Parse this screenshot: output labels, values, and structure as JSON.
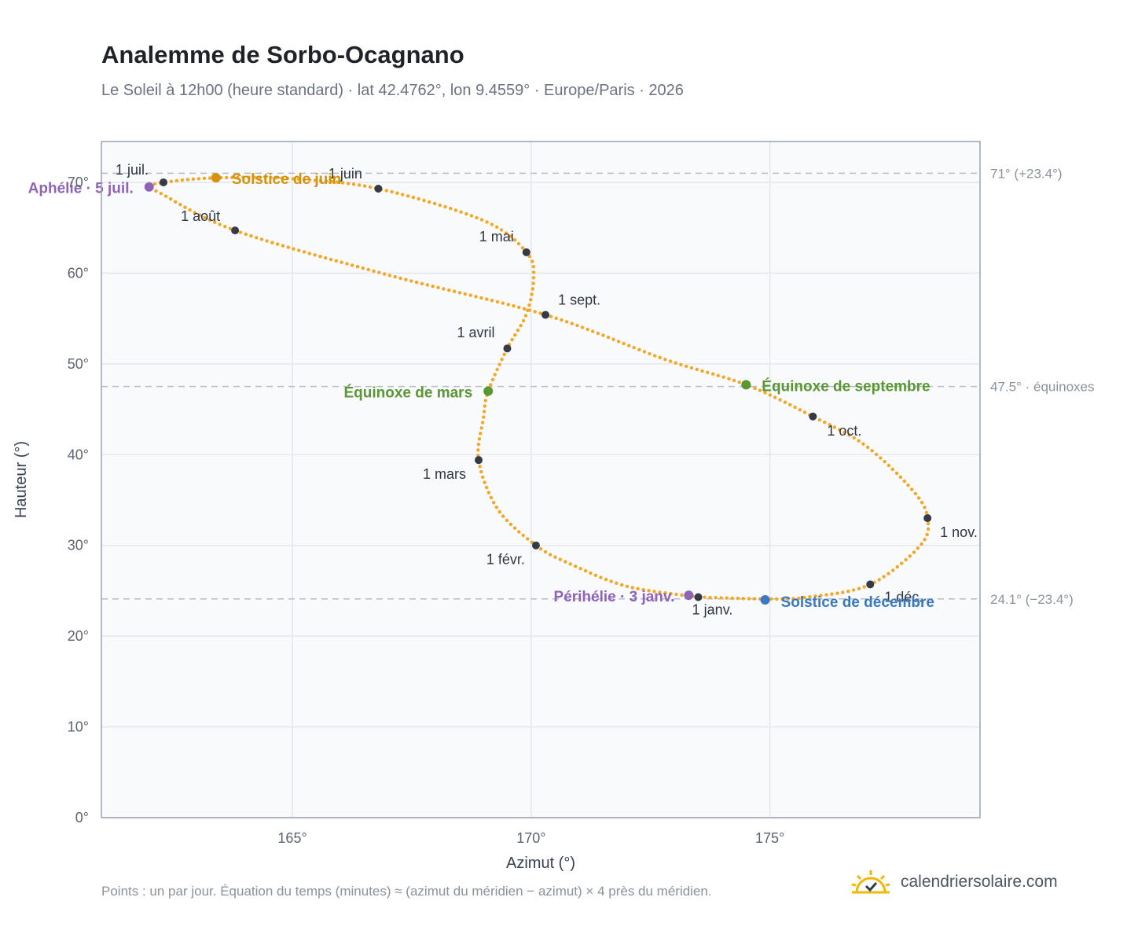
{
  "header": {
    "title": "Analemme de Sorbo-Ocagnano",
    "subtitle": "Le Soleil à 12h00 (heure standard) · lat 42.4762°, lon 9.4559° · Europe/Paris · 2026"
  },
  "footer": {
    "note": "Points : un par jour. Équation du temps (minutes) ≈ (azimut du méridien − azimut) × 4 près du méridien.",
    "brand": "calendriersolaire.com"
  },
  "colors": {
    "path": "#f5a623",
    "marker": "#343a46",
    "solstice_june": "#d4920e",
    "solstice_december": "#3a78c2",
    "equinox": "#5a9632",
    "apsis": "#8e63b8",
    "grid": "#e3e8ee",
    "plot_bg": "#f8fafc",
    "ref_line": "#b6bdc6"
  },
  "chart_data": {
    "type": "scatter",
    "xlabel": "Azimut (°)",
    "ylabel": "Hauteur (°)",
    "xlim": [
      161,
      179.4
    ],
    "ylim": [
      0,
      74.5
    ],
    "x_ticks": [
      165,
      170,
      175
    ],
    "x_tick_labels": [
      "165°",
      "170°",
      "175°"
    ],
    "y_ticks": [
      0,
      10,
      20,
      30,
      40,
      50,
      60,
      70
    ],
    "y_tick_labels": [
      "0°",
      "10°",
      "20°",
      "30°",
      "40°",
      "50°",
      "60°",
      "70°"
    ],
    "grid": true,
    "series": [
      {
        "points_per_day": true,
        "points": [
          {
            "x": 173.5,
            "y": 24.3
          },
          {
            "x": 172.0,
            "y": 25.5
          },
          {
            "x": 170.8,
            "y": 28.0
          },
          {
            "x": 170.1,
            "y": 30.0
          },
          {
            "x": 169.3,
            "y": 34.0
          },
          {
            "x": 168.9,
            "y": 39.4
          },
          {
            "x": 169.0,
            "y": 44.0
          },
          {
            "x": 169.1,
            "y": 47.0
          },
          {
            "x": 169.5,
            "y": 51.7
          },
          {
            "x": 169.9,
            "y": 55.5
          },
          {
            "x": 170.05,
            "y": 59.5
          },
          {
            "x": 169.9,
            "y": 62.3
          },
          {
            "x": 169.0,
            "y": 65.8
          },
          {
            "x": 166.8,
            "y": 69.3
          },
          {
            "x": 165.0,
            "y": 70.4
          },
          {
            "x": 163.4,
            "y": 70.5
          },
          {
            "x": 162.3,
            "y": 70.0
          },
          {
            "x": 162.0,
            "y": 69.5
          },
          {
            "x": 162.2,
            "y": 68.9
          },
          {
            "x": 163.8,
            "y": 64.7
          },
          {
            "x": 167.0,
            "y": 59.8
          },
          {
            "x": 170.3,
            "y": 55.4
          },
          {
            "x": 172.8,
            "y": 50.5
          },
          {
            "x": 174.5,
            "y": 47.7
          },
          {
            "x": 175.9,
            "y": 44.2
          },
          {
            "x": 177.0,
            "y": 41.0
          },
          {
            "x": 178.0,
            "y": 36.0
          },
          {
            "x": 178.3,
            "y": 33.0
          },
          {
            "x": 178.15,
            "y": 30.0
          },
          {
            "x": 177.1,
            "y": 25.7
          },
          {
            "x": 175.8,
            "y": 24.3
          },
          {
            "x": 174.9,
            "y": 24.1
          },
          {
            "x": 173.5,
            "y": 24.3
          }
        ]
      }
    ],
    "month_markers": [
      {
        "label": "1 janv.",
        "x": 173.5,
        "y": 24.3
      },
      {
        "label": "1 févr.",
        "x": 170.1,
        "y": 30.0
      },
      {
        "label": "1 mars",
        "x": 168.9,
        "y": 39.4
      },
      {
        "label": "1 avril",
        "x": 169.5,
        "y": 51.7
      },
      {
        "label": "1 mai",
        "x": 169.9,
        "y": 62.3
      },
      {
        "label": "1 juin",
        "x": 166.8,
        "y": 69.3
      },
      {
        "label": "1 juil.",
        "x": 162.3,
        "y": 70.0
      },
      {
        "label": "1 août",
        "x": 163.8,
        "y": 64.7
      },
      {
        "label": "1 sept.",
        "x": 170.3,
        "y": 55.4
      },
      {
        "label": "1 oct.",
        "x": 175.9,
        "y": 44.2
      },
      {
        "label": "1 nov.",
        "x": 178.3,
        "y": 33.0
      },
      {
        "label": "1 déc.",
        "x": 177.1,
        "y": 25.7
      }
    ],
    "events": [
      {
        "label": "Solstice de juin",
        "x": 163.4,
        "y": 70.5,
        "color": "solstice_june"
      },
      {
        "label": "Aphélie · 5 juil.",
        "x": 162.0,
        "y": 69.5,
        "color": "apsis"
      },
      {
        "label": "Équinoxe de mars",
        "x": 169.1,
        "y": 47.0,
        "color": "equinox"
      },
      {
        "label": "Équinoxe de septembre",
        "x": 174.5,
        "y": 47.7,
        "color": "equinox"
      },
      {
        "label": "Périhélie · 3 janv.",
        "x": 173.3,
        "y": 24.5,
        "color": "apsis"
      },
      {
        "label": "Solstice de décembre",
        "x": 174.9,
        "y": 24.0,
        "color": "solstice_december"
      }
    ],
    "reference_lines": [
      {
        "y": 71.0,
        "label": "71° (+23.4°)"
      },
      {
        "y": 47.5,
        "label": "47.5° · équinoxes"
      },
      {
        "y": 24.1,
        "label": "24.1° (−23.4°)"
      }
    ]
  }
}
